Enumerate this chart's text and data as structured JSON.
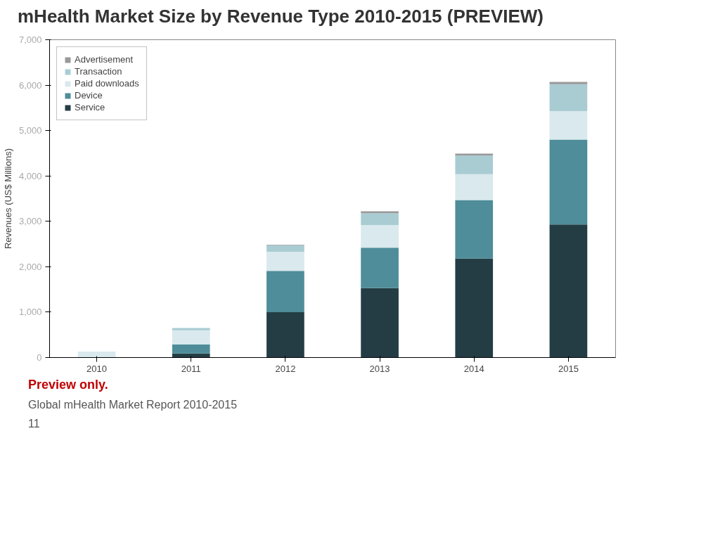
{
  "chart_data": {
    "type": "bar",
    "stacked": true,
    "title": "mHealth Market Size by Revenue Type 2010-2015 (PREVIEW)",
    "ylabel": "Revenues (US$ Millions)",
    "categories": [
      "2010",
      "2011",
      "2012",
      "2013",
      "2014",
      "2015"
    ],
    "series": [
      {
        "name": "Service",
        "color": "#243d45",
        "values": [
          0,
          90,
          1000,
          1530,
          2180,
          2930
        ]
      },
      {
        "name": "Device",
        "color": "#4e8d99",
        "values": [
          0,
          200,
          910,
          890,
          1290,
          1870
        ]
      },
      {
        "name": "Paid downloads",
        "color": "#d9e9ed",
        "values": [
          130,
          310,
          420,
          500,
          570,
          630
        ]
      },
      {
        "name": "Transaction",
        "color": "#a9ccd3",
        "values": [
          null,
          50,
          140,
          260,
          410,
          590
        ]
      },
      {
        "name": "Advertisement",
        "color": "#999999",
        "values": [
          0,
          0,
          10,
          40,
          40,
          50
        ]
      }
    ],
    "ylim": [
      0,
      7000
    ],
    "yticks": [
      {
        "value": 0,
        "label": "0"
      },
      {
        "value": 1000,
        "label": "1,000"
      },
      {
        "value": 2000,
        "label": "2,000"
      },
      {
        "value": 3000,
        "label": "3,000"
      },
      {
        "value": 4000,
        "label": "4,000"
      },
      {
        "value": 5000,
        "label": "5,000"
      },
      {
        "value": 6000,
        "label": "6,000"
      },
      {
        "value": 7000,
        "label": "7,000"
      }
    ],
    "grid": false,
    "legend": "top left",
    "annotations": [
      "Preview only.",
      "Global mHealth Market Report 2010-2015",
      "11"
    ]
  }
}
